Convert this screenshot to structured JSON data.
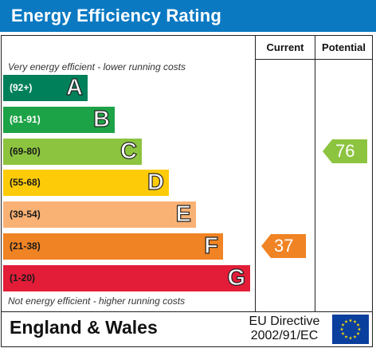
{
  "title": "Energy Efficiency Rating",
  "columns": {
    "current": "Current",
    "potential": "Potential"
  },
  "top_note": "Very energy efficient - lower running costs",
  "bottom_note": "Not energy efficient - higher running costs",
  "footer": {
    "country": "England & Wales",
    "directive_line1": "EU Directive",
    "directive_line2": "2002/91/EC",
    "flag_icon": "eu-flag-icon"
  },
  "chart_data": {
    "type": "bar",
    "title": "Energy Efficiency Rating",
    "categories": [
      "A",
      "B",
      "C",
      "D",
      "E",
      "F",
      "G"
    ],
    "bands": [
      {
        "letter": "A",
        "range": "(92+)",
        "color": "#00805a",
        "range_color": "#ffffff"
      },
      {
        "letter": "B",
        "range": "(81-91)",
        "color": "#1da347",
        "range_color": "#ffffff"
      },
      {
        "letter": "C",
        "range": "(69-80)",
        "color": "#8cc43f",
        "range_color": "#1a1a1a"
      },
      {
        "letter": "D",
        "range": "(55-68)",
        "color": "#fecb08",
        "range_color": "#1a1a1a"
      },
      {
        "letter": "E",
        "range": "(39-54)",
        "color": "#f9b174",
        "range_color": "#1a1a1a"
      },
      {
        "letter": "F",
        "range": "(21-38)",
        "color": "#f08323",
        "range_color": "#1a1a1a"
      },
      {
        "letter": "G",
        "range": "(1-20)",
        "color": "#e31c38",
        "range_color": "#1a1a1a"
      }
    ],
    "current": {
      "value": 37,
      "band": "F",
      "color": "#f08323"
    },
    "potential": {
      "value": 76,
      "band": "C",
      "color": "#8cc43f"
    }
  }
}
